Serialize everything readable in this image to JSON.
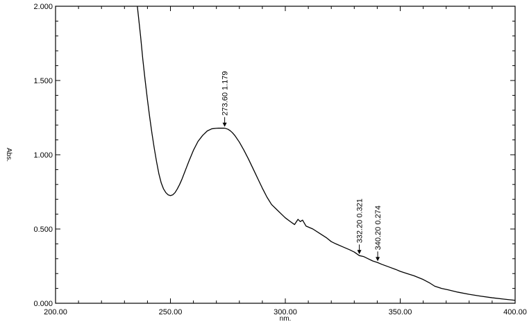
{
  "chart_data": {
    "type": "line",
    "title": "",
    "xlabel": "nm.",
    "ylabel": "Abs.",
    "xlim": [
      200,
      400
    ],
    "ylim": [
      0,
      2
    ],
    "grid": false,
    "x_ticks": [
      "200.00",
      "250.00",
      "300.00",
      "350.00",
      "400.00"
    ],
    "y_ticks": [
      "0.000",
      "0.500",
      "1.000",
      "1.500",
      "2.000"
    ],
    "x_tick_values": [
      200,
      250,
      300,
      350,
      400
    ],
    "y_tick_values": [
      0,
      0.5,
      1.0,
      1.5,
      2.0
    ],
    "series": [
      {
        "x": [
          235.6,
          237,
          238,
          239,
          240,
          241,
          242,
          243,
          244,
          245,
          246,
          247,
          248,
          249,
          250,
          251,
          252,
          253,
          254,
          255,
          256,
          257,
          258,
          260,
          262,
          264,
          266,
          268,
          270,
          271,
          272,
          273.6,
          275,
          276,
          277,
          278,
          280,
          282,
          284,
          286,
          288,
          290,
          292,
          294,
          296,
          298,
          300,
          302,
          304,
          305.5,
          306.5,
          307.5,
          309,
          312,
          315,
          318,
          320,
          322,
          325,
          328,
          330,
          332.2,
          334,
          336,
          338,
          340.2,
          342,
          345,
          348,
          350,
          353,
          356,
          360,
          363,
          365,
          368,
          371,
          375,
          380,
          385,
          390,
          395,
          400
        ],
        "y": [
          2.0,
          1.8,
          1.64,
          1.5,
          1.37,
          1.25,
          1.14,
          1.04,
          0.95,
          0.87,
          0.81,
          0.77,
          0.745,
          0.73,
          0.725,
          0.73,
          0.745,
          0.77,
          0.8,
          0.835,
          0.875,
          0.915,
          0.955,
          1.03,
          1.09,
          1.13,
          1.16,
          1.175,
          1.178,
          1.179,
          1.179,
          1.179,
          1.172,
          1.162,
          1.148,
          1.13,
          1.085,
          1.03,
          0.97,
          0.905,
          0.84,
          0.775,
          0.715,
          0.665,
          0.635,
          0.605,
          0.575,
          0.552,
          0.53,
          0.565,
          0.55,
          0.56,
          0.52,
          0.5,
          0.47,
          0.44,
          0.415,
          0.4,
          0.38,
          0.36,
          0.345,
          0.321,
          0.315,
          0.3,
          0.285,
          0.274,
          0.262,
          0.245,
          0.228,
          0.215,
          0.2,
          0.185,
          0.16,
          0.135,
          0.115,
          0.1,
          0.09,
          0.075,
          0.06,
          0.048,
          0.037,
          0.028,
          0.02
        ]
      }
    ],
    "annotations": [
      {
        "x": 273.6,
        "y": 1.179,
        "label": "273.60  1.179"
      },
      {
        "x": 332.2,
        "y": 0.321,
        "label": "332.20  0.321"
      },
      {
        "x": 340.2,
        "y": 0.274,
        "label": "340.20  0.274"
      }
    ]
  }
}
